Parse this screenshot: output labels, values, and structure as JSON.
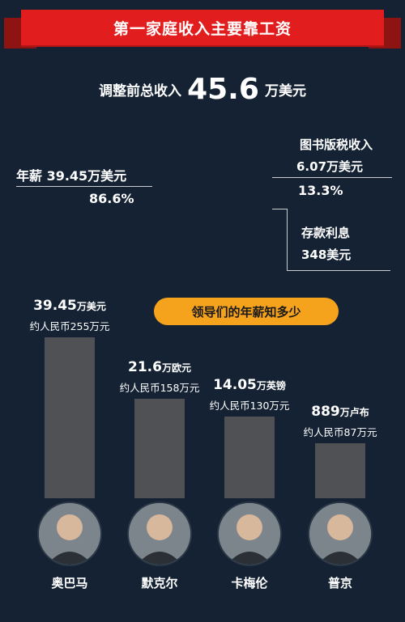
{
  "banner": {
    "title": "第一家庭收入主要靠工资"
  },
  "total": {
    "prefix": "调整前总收入",
    "value": "45.6",
    "unit": "万美元"
  },
  "salary": {
    "label": "年薪 39.45万美元",
    "percent": "86.6%"
  },
  "royalty": {
    "label": "图书版税收入",
    "value": "6.07万美元",
    "percent": "13.3%"
  },
  "savings": {
    "label": "存款利息",
    "value": "348美元"
  },
  "pill": {
    "label": "领导们的年薪知多少"
  },
  "chart_data": {
    "type": "bar",
    "title": "领导们的年薪知多少",
    "categories": [
      "奥巴马",
      "默克尔",
      "卡梅伦",
      "普京"
    ],
    "values": [
      255,
      158,
      130,
      87
    ],
    "unit": "万元",
    "ylim": [
      0,
      260
    ],
    "bars": [
      {
        "name": "奥巴马",
        "amount": "39.45",
        "currency": "万美元",
        "rmb": "约人民币255万元",
        "rmb_value": 255
      },
      {
        "name": "默克尔",
        "amount": "21.6",
        "currency": "万欧元",
        "rmb": "约人民币158万元",
        "rmb_value": 158
      },
      {
        "name": "卡梅伦",
        "amount": "14.05",
        "currency": "万英镑",
        "rmb": "约人民币130万元",
        "rmb_value": 130
      },
      {
        "name": "普京",
        "amount": "889",
        "currency": "万卢布",
        "rmb": "约人民币87万元",
        "rmb_value": 87
      }
    ]
  },
  "colors": {
    "background": "#142233",
    "banner": "#e11d1d",
    "pill": "#f5a21d",
    "bar": "#4f5155"
  }
}
